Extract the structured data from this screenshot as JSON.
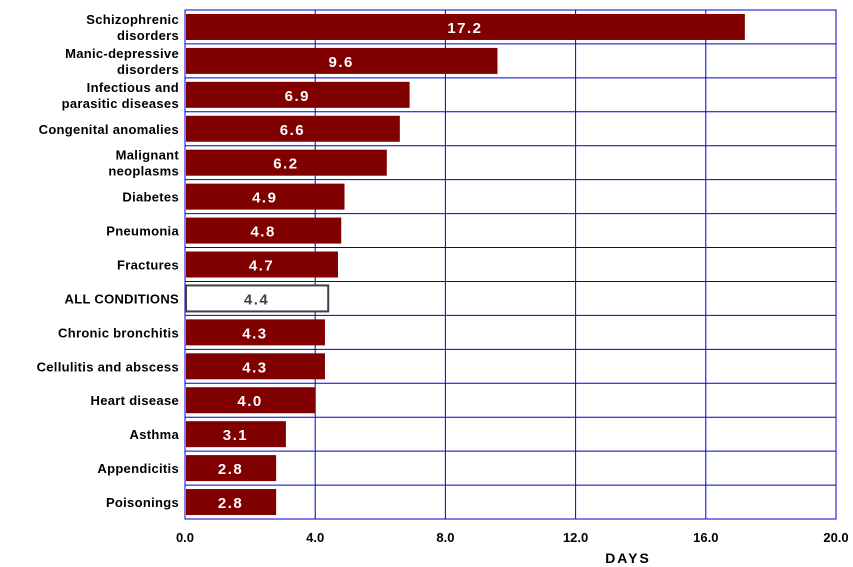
{
  "chart_data": {
    "type": "bar",
    "orientation": "horizontal",
    "categories": [
      "Schizophrenic disorders",
      "Manic-depressive disorders",
      "Infectious and parasitic diseases",
      "Congenital anomalies",
      "Malignant neoplasms",
      "Diabetes",
      "Pneumonia",
      "Fractures",
      "ALL CONDITIONS",
      "Chronic bronchitis",
      "Cellulitis and abscess",
      "Heart disease",
      "Asthma",
      "Appendicitis",
      "Poisonings"
    ],
    "category_lines": [
      [
        "Schizophrenic",
        "disorders"
      ],
      [
        "Manic-depressive",
        "disorders"
      ],
      [
        "Infectious and",
        "parasitic diseases"
      ],
      [
        "Congenital anomalies"
      ],
      [
        "Malignant",
        "neoplasms"
      ],
      [
        "Diabetes"
      ],
      [
        "Pneumonia"
      ],
      [
        "Fractures"
      ],
      [
        "ALL CONDITIONS"
      ],
      [
        "Chronic bronchitis"
      ],
      [
        "Cellulitis and abscess"
      ],
      [
        "Heart disease"
      ],
      [
        "Asthma"
      ],
      [
        "Appendicitis"
      ],
      [
        "Poisonings"
      ]
    ],
    "values": [
      17.2,
      9.6,
      6.9,
      6.6,
      6.2,
      4.9,
      4.8,
      4.7,
      4.4,
      4.3,
      4.3,
      4.0,
      3.1,
      2.8,
      2.8
    ],
    "value_labels": [
      "17.2",
      "9.6",
      "6.9",
      "6.6",
      "6.2",
      "4.9",
      "4.8",
      "4.7",
      "4.4",
      "4.3",
      "4.3",
      "4.0",
      "3.1",
      "2.8",
      "2.8"
    ],
    "highlight_index": 8,
    "xlabel": "DAYS",
    "xlim": [
      0,
      20
    ],
    "xticks": [
      0,
      4,
      8,
      12,
      16,
      20
    ],
    "xtick_labels": [
      "0.0",
      "4.0",
      "8.0",
      "12.0",
      "16.0",
      "20.0"
    ],
    "grid": true,
    "legend": "none",
    "colors": {
      "bar": "#800000",
      "highlight_fill": "#ffffff",
      "highlight_stroke": "#404040",
      "grid": "#0000cc",
      "bar_label": "#ffffff",
      "highlight_label": "#404040"
    }
  }
}
